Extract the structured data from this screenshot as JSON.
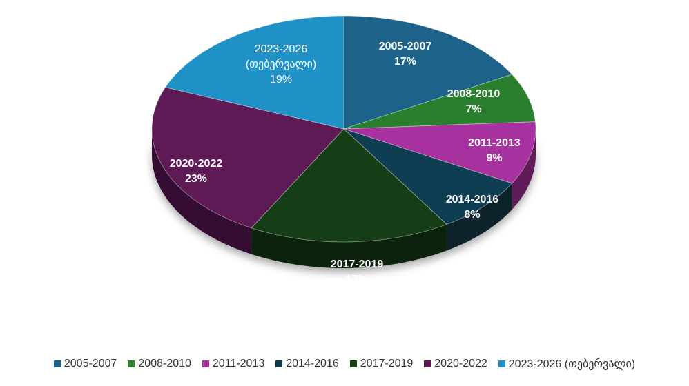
{
  "chart_data": {
    "type": "pie",
    "style": "3d",
    "legend": "bottom",
    "slices": [
      {
        "label": "2005-2007",
        "display_label": "2005-2007",
        "value": 17,
        "value_label": "17%",
        "color": "#1c6289",
        "side_color": "#0f3a54"
      },
      {
        "label": "2008-2010",
        "display_label": "2008-2010",
        "value": 7,
        "value_label": "7%",
        "color": "#2a7f2e",
        "side_color": "#17491a"
      },
      {
        "label": "2011-2013",
        "display_label": "2011-2013",
        "value": 9,
        "value_label": "9%",
        "color": "#a7319f",
        "side_color": "#5e1a59"
      },
      {
        "label": "2014-2016",
        "display_label": "2014-2016",
        "value": 8,
        "value_label": "8%",
        "color": "#0f3d52",
        "side_color": "#07202c"
      },
      {
        "label": "2017-2019",
        "display_label": "2017-2019",
        "value": 17,
        "value_label": "17%",
        "color": "#163e16",
        "side_color": "#0c230c"
      },
      {
        "label": "2020-2022",
        "display_label": "2020-2022",
        "value": 23,
        "value_label": "23%",
        "color": "#5e1a55",
        "side_color": "#350e30"
      },
      {
        "label": "2023-2026 (თებერვალი)",
        "display_label": "2023-2026",
        "display_sublabel": "(თებერვალი)",
        "value": 19,
        "value_label": "19%",
        "color": "#2091c7",
        "side_color": "#125a7d"
      }
    ]
  }
}
